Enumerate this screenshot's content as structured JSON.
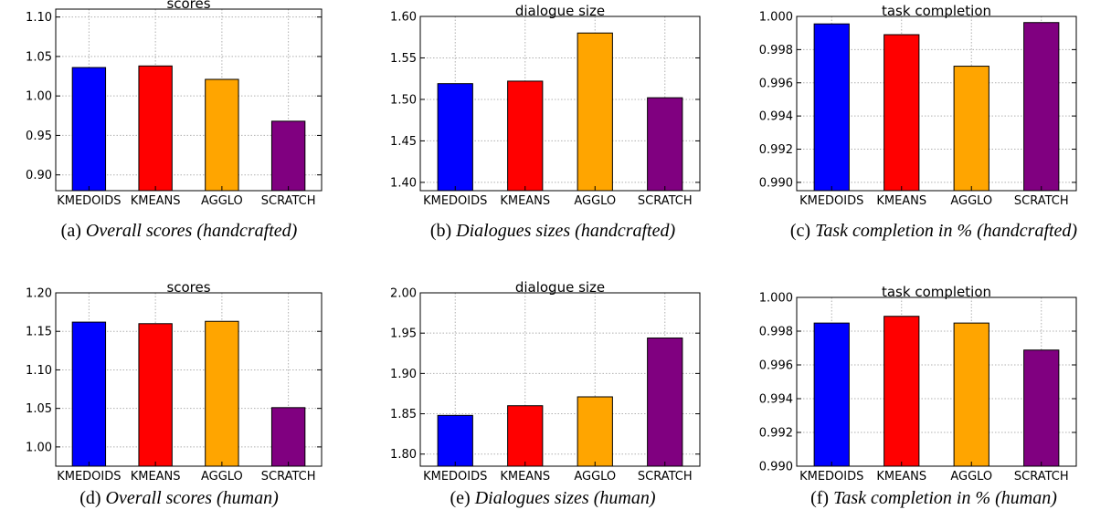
{
  "chart_data": [
    {
      "type": "bar",
      "title": "scores",
      "categories": [
        "KMEDOIDS",
        "KMEANS",
        "AGGLO",
        "SCRATCH"
      ],
      "values": [
        1.036,
        1.038,
        1.021,
        0.968
      ],
      "colors": [
        "#0000ff",
        "#ff0000",
        "#ffa500",
        "#800080"
      ],
      "ylim": [
        0.88,
        1.11
      ],
      "yticks": [
        0.9,
        0.95,
        1.0,
        1.05,
        1.1
      ],
      "ytick_labels": [
        "0.90",
        "0.95",
        "1.00",
        "1.05",
        "1.10"
      ],
      "grid": true,
      "caption_prefix": "(a)",
      "caption": "Overall scores (handcrafted)"
    },
    {
      "type": "bar",
      "title": "dialogue size",
      "categories": [
        "KMEDOIDS",
        "KMEANS",
        "AGGLO",
        "SCRATCH"
      ],
      "values": [
        1.519,
        1.522,
        1.58,
        1.502
      ],
      "colors": [
        "#0000ff",
        "#ff0000",
        "#ffa500",
        "#800080"
      ],
      "ylim": [
        1.39,
        1.6
      ],
      "yticks": [
        1.4,
        1.45,
        1.5,
        1.55,
        1.6
      ],
      "ytick_labels": [
        "1.40",
        "1.45",
        "1.50",
        "1.55",
        "1.60"
      ],
      "grid": true,
      "caption_prefix": "(b)",
      "caption": "Dialogues sizes (handcrafted)"
    },
    {
      "type": "bar",
      "title": "task completion",
      "categories": [
        "KMEDOIDS",
        "KMEANS",
        "AGGLO",
        "SCRATCH"
      ],
      "values": [
        0.99955,
        0.9989,
        0.997,
        0.99963
      ],
      "colors": [
        "#0000ff",
        "#ff0000",
        "#ffa500",
        "#800080"
      ],
      "ylim": [
        0.9895,
        1.0
      ],
      "yticks": [
        0.99,
        0.992,
        0.994,
        0.996,
        0.998,
        1.0
      ],
      "ytick_labels": [
        "0.990",
        "0.992",
        "0.994",
        "0.996",
        "0.998",
        "1.000"
      ],
      "grid": true,
      "caption_prefix": "(c)",
      "caption": "Task completion in % (handcrafted)"
    },
    {
      "type": "bar",
      "title": "scores",
      "categories": [
        "KMEDOIDS",
        "KMEANS",
        "AGGLO",
        "SCRATCH"
      ],
      "values": [
        1.162,
        1.16,
        1.163,
        1.051
      ],
      "colors": [
        "#0000ff",
        "#ff0000",
        "#ffa500",
        "#800080"
      ],
      "ylim": [
        0.975,
        1.2
      ],
      "yticks": [
        1.0,
        1.05,
        1.1,
        1.15,
        1.2
      ],
      "ytick_labels": [
        "1.00",
        "1.05",
        "1.10",
        "1.15",
        "1.20"
      ],
      "grid": true,
      "caption_prefix": "(d)",
      "caption": "Overall scores (human)"
    },
    {
      "type": "bar",
      "title": "dialogue size",
      "categories": [
        "KMEDOIDS",
        "KMEANS",
        "AGGLO",
        "SCRATCH"
      ],
      "values": [
        1.848,
        1.86,
        1.871,
        1.944
      ],
      "colors": [
        "#0000ff",
        "#ff0000",
        "#ffa500",
        "#800080"
      ],
      "ylim": [
        1.785,
        2.0
      ],
      "yticks": [
        1.8,
        1.85,
        1.9,
        1.95,
        2.0
      ],
      "ytick_labels": [
        "1.80",
        "1.85",
        "1.90",
        "1.95",
        "2.00"
      ],
      "grid": true,
      "caption_prefix": "(e)",
      "caption": "Dialogues sizes (human)"
    },
    {
      "type": "bar",
      "title": "task completion",
      "categories": [
        "KMEDOIDS",
        "KMEANS",
        "AGGLO",
        "SCRATCH"
      ],
      "values": [
        0.99848,
        0.99888,
        0.99848,
        0.99688
      ],
      "colors": [
        "#0000ff",
        "#ff0000",
        "#ffa500",
        "#800080"
      ],
      "ylim": [
        0.99,
        1.0
      ],
      "yticks": [
        0.99,
        0.992,
        0.994,
        0.996,
        0.998,
        1.0
      ],
      "ytick_labels": [
        "0.990",
        "0.992",
        "0.994",
        "0.996",
        "0.998",
        "1.000"
      ],
      "grid": true,
      "caption_prefix": "(f)",
      "caption": "Task completion in % (human)"
    }
  ]
}
